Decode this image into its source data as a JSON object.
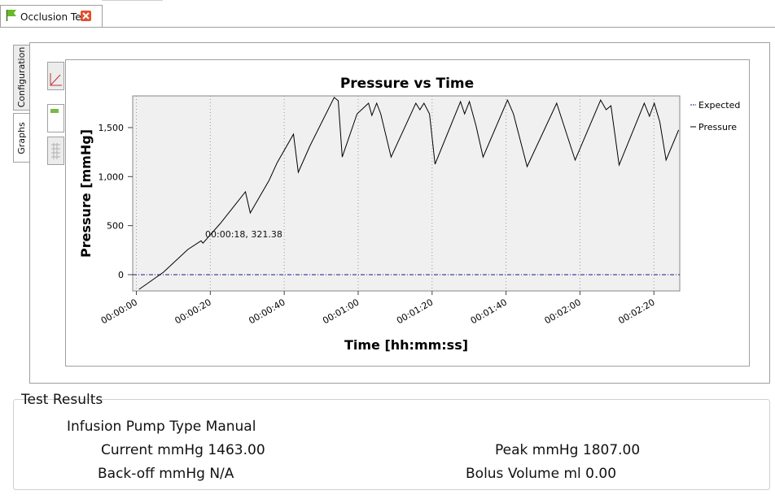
{
  "tab": {
    "title": "Occlusion Test"
  },
  "side_tabs": [
    "Configuration",
    "Graphs"
  ],
  "chart_data": {
    "type": "line",
    "title": "Pressure vs Time",
    "xlabel": "Time [hh:mm:ss]",
    "ylabel": "Pressure [mmHg]",
    "xlim": [
      -1,
      147
    ],
    "ylim": [
      -166,
      1823
    ],
    "xticks": [
      {
        "value": 0,
        "label": "00:00:00"
      },
      {
        "value": 20,
        "label": "00:00:20"
      },
      {
        "value": 40,
        "label": "00:00:40"
      },
      {
        "value": 60,
        "label": "00:01:00"
      },
      {
        "value": 80,
        "label": "00:01:20"
      },
      {
        "value": 100,
        "label": "00:01:40"
      },
      {
        "value": 120,
        "label": "00:02:00"
      },
      {
        "value": 140,
        "label": "00:02:20"
      }
    ],
    "yticks": [
      0,
      500,
      {
        "value": 1000,
        "label": "1,000"
      },
      {
        "value": 1500,
        "label": "1,500"
      }
    ],
    "grid": "x",
    "legend": "right",
    "annotation": "00:00:18, 321.38",
    "series": [
      {
        "name": "Expected",
        "color": "#1a1a8c",
        "dash": "dashdot",
        "x": [
          -1,
          147
        ],
        "values": [
          0,
          0
        ]
      },
      {
        "name": "Pressure",
        "color": "#000000",
        "dash": "solid",
        "x": [
          0.7,
          7.3,
          13.9,
          17.5,
          18,
          22.7,
          29.5,
          30.8,
          35.9,
          38.1,
          42.5,
          43.8,
          46.9,
          53.5,
          54.6,
          55.7,
          59.7,
          62.8,
          63.7,
          65,
          66.1,
          68.9,
          75.6,
          76.7,
          77.8,
          79.3,
          80.8,
          87.7,
          88.8,
          90.1,
          91.9,
          93.8,
          100.4,
          102,
          105.7,
          113.7,
          115.2,
          118.7,
          125.6,
          127.1,
          128.4,
          130.6,
          137.4,
          138.8,
          140.1,
          141.6,
          143.3,
          146.7
        ],
        "values": [
          -150,
          25,
          257,
          345,
          321.38,
          522,
          845,
          630,
          961,
          1143,
          1433,
          1044,
          1309,
          1807,
          1773,
          1200,
          1640,
          1748,
          1624,
          1748,
          1640,
          1200,
          1748,
          1682,
          1748,
          1640,
          1127,
          1765,
          1640,
          1765,
          1516,
          1200,
          1781,
          1640,
          1102,
          1748,
          1574,
          1168,
          1781,
          1682,
          1723,
          1118,
          1748,
          1616,
          1748,
          1558,
          1168,
          1475
        ]
      }
    ]
  },
  "results": {
    "title": "Test Results",
    "pump_type": {
      "label": "Infusion Pump Type",
      "value": "Manual"
    },
    "current": {
      "label": "Current mmHg",
      "value": "1463.00"
    },
    "peak": {
      "label": "Peak mmHg",
      "value": "1807.00"
    },
    "backoff": {
      "label": "Back-off mmHg",
      "value": "N/A"
    },
    "bolus": {
      "label": "Bolus Volume ml",
      "value": "0.00"
    }
  }
}
